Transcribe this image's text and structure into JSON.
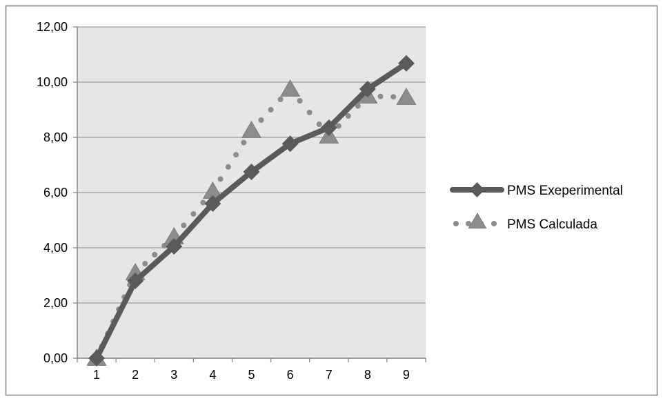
{
  "chart_data": {
    "type": "line",
    "categories": [
      "1",
      "2",
      "3",
      "4",
      "5",
      "6",
      "7",
      "8",
      "9"
    ],
    "ylim": [
      0,
      12
    ],
    "yticks": [
      "0,00",
      "2,00",
      "4,00",
      "6,00",
      "8,00",
      "10,00",
      "12,00"
    ],
    "grid": true,
    "legend_position": "right",
    "series": [
      {
        "name": "PMS Exeperimental",
        "values": [
          0.0,
          2.8,
          4.05,
          5.6,
          6.75,
          7.77,
          8.35,
          9.75,
          10.68
        ],
        "style": "solid",
        "marker": "diamond",
        "color": "#5a5a5a"
      },
      {
        "name": "PMS Calculada",
        "values": [
          0.0,
          3.1,
          4.4,
          6.05,
          8.25,
          9.75,
          8.05,
          9.5,
          9.45
        ],
        "style": "dotted",
        "marker": "triangle",
        "color": "#8c8c8c"
      }
    ]
  },
  "colors": {
    "plot_background": "#e6e6e6",
    "gridline": "#8a8a8a",
    "axis": "#808080",
    "frame": "#808080"
  }
}
